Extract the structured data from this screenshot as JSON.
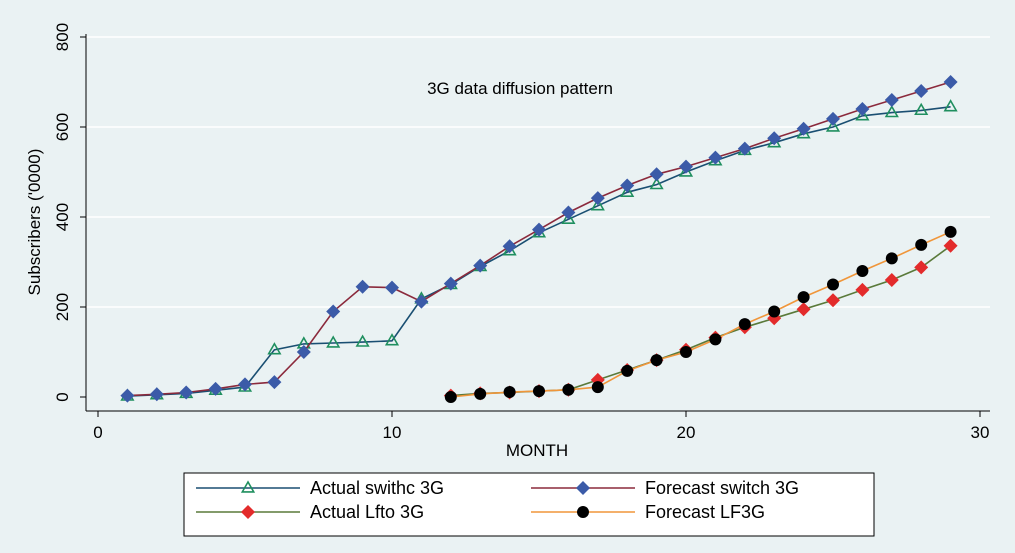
{
  "chart_data": {
    "type": "line",
    "annotation": "3G data diffusion pattern",
    "xlabel": "MONTH",
    "ylabel": "Subscribers ('0000)",
    "xlim": [
      0,
      30
    ],
    "ylim": [
      0,
      800
    ],
    "xticks": [
      0,
      10,
      20,
      30
    ],
    "yticks": [
      0,
      200,
      400,
      600,
      800
    ],
    "grid": "horizontal",
    "legend_position": "bottom",
    "series": [
      {
        "name": "Actual swithc 3G",
        "color": "#1a4f72",
        "marker": "triangle-hollow",
        "marker_color": "#1f8f5f",
        "x": [
          1,
          2,
          3,
          4,
          5,
          6,
          7,
          8,
          9,
          10,
          11,
          12,
          13,
          14,
          15,
          16,
          17,
          18,
          19,
          20,
          21,
          22,
          23,
          24,
          25,
          26,
          27,
          28,
          29
        ],
        "y": [
          2,
          5,
          8,
          15,
          22,
          105,
          118,
          120,
          122,
          125,
          218,
          250,
          290,
          325,
          365,
          395,
          425,
          455,
          472,
          500,
          525,
          548,
          565,
          585,
          600,
          625,
          632,
          637,
          645
        ]
      },
      {
        "name": "Forecast switch 3G",
        "color": "#8b2a3c",
        "marker": "diamond",
        "marker_color": "#3b5ba8",
        "x": [
          1,
          2,
          3,
          4,
          5,
          6,
          7,
          8,
          9,
          10,
          11,
          12,
          13,
          14,
          15,
          16,
          17,
          18,
          19,
          20,
          21,
          22,
          23,
          24,
          25,
          26,
          27,
          28,
          29
        ],
        "y": [
          3,
          6,
          10,
          18,
          28,
          33,
          100,
          190,
          245,
          243,
          212,
          252,
          292,
          335,
          372,
          410,
          442,
          470,
          495,
          512,
          532,
          552,
          575,
          596,
          618,
          640,
          660,
          680,
          700
        ]
      },
      {
        "name": "Actual Lfto 3G",
        "color": "#5a7a3a",
        "marker": "diamond",
        "marker_color": "#e32b2b",
        "x": [
          12,
          13,
          14,
          15,
          16,
          17,
          18,
          19,
          20,
          21,
          22,
          23,
          24,
          25,
          26,
          27,
          28,
          29
        ],
        "y": [
          3,
          8,
          10,
          13,
          16,
          38,
          60,
          82,
          105,
          132,
          155,
          175,
          195,
          215,
          238,
          260,
          288,
          336
        ]
      },
      {
        "name": "Forecast LF3G",
        "color": "#f0963a",
        "marker": "circle",
        "marker_color": "#000000",
        "x": [
          12,
          13,
          14,
          15,
          16,
          17,
          18,
          19,
          20,
          21,
          22,
          23,
          24,
          25,
          26,
          27,
          28,
          29
        ],
        "y": [
          0,
          7,
          11,
          13,
          16,
          22,
          58,
          82,
          100,
          128,
          162,
          190,
          222,
          250,
          280,
          308,
          338,
          367
        ]
      }
    ]
  }
}
